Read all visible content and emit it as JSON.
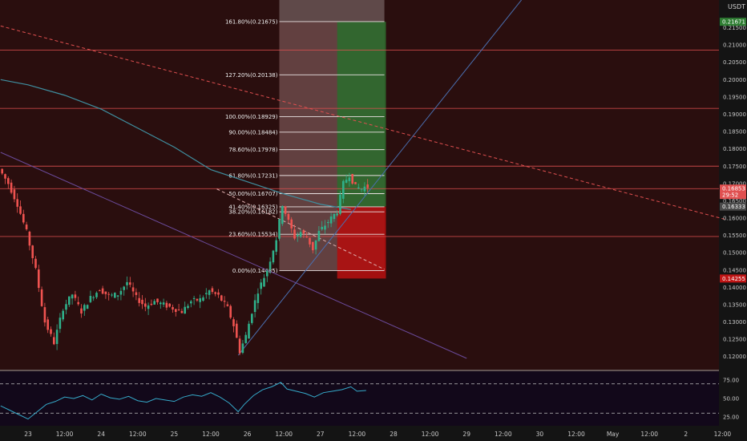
{
  "chart_data": {
    "type": "candlestick",
    "currency": "USDT",
    "price_axis": {
      "min": 0.116,
      "max": 0.223,
      "ticks": [
        "0.21500",
        "0.21000",
        "0.20500",
        "0.20000",
        "0.19500",
        "0.19000",
        "0.18500",
        "0.18000",
        "0.17500",
        "0.17000",
        "0.16500",
        "0.16000",
        "0.15500",
        "0.15000",
        "0.14500",
        "0.14000",
        "0.13500",
        "0.13000",
        "0.12500",
        "0.12000"
      ]
    },
    "price_badges": [
      {
        "value": 0.21671,
        "label": "0.21671",
        "color": "#2e7d32"
      },
      {
        "value": 0.16853,
        "label": "0.16853",
        "sub": "29:52",
        "color": "#e05050"
      },
      {
        "value": 0.16333,
        "label": "0.16333",
        "color": "#4a4a4a"
      },
      {
        "value": 0.14255,
        "label": "0.14255",
        "color": "#c01515"
      }
    ],
    "time_axis": [
      {
        "label": "23",
        "t": 0
      },
      {
        "label": "12:00",
        "t": 12
      },
      {
        "label": "24",
        "t": 24
      },
      {
        "label": "12:00",
        "t": 36
      },
      {
        "label": "25",
        "t": 48
      },
      {
        "label": "12:00",
        "t": 60
      },
      {
        "label": "26",
        "t": 72
      },
      {
        "label": "12:00",
        "t": 84
      },
      {
        "label": "27",
        "t": 96
      },
      {
        "label": "12:00",
        "t": 108
      },
      {
        "label": "28",
        "t": 120
      },
      {
        "label": "12:00",
        "t": 132
      },
      {
        "label": "29",
        "t": 144
      },
      {
        "label": "12:00",
        "t": 156
      },
      {
        "label": "30",
        "t": 168
      },
      {
        "label": "12:00",
        "t": 180
      },
      {
        "label": "May",
        "t": 192
      },
      {
        "label": "12:00",
        "t": 204
      },
      {
        "label": "2",
        "t": 216
      },
      {
        "label": "12:00",
        "t": 228
      }
    ],
    "fib_levels": [
      {
        "label": "161.80%(0.21675)",
        "value": 0.21675
      },
      {
        "label": "127.20%(0.20138)",
        "value": 0.20138
      },
      {
        "label": "100.00%(0.18929)",
        "value": 0.18929
      },
      {
        "label": "90.00%(0.18484)",
        "value": 0.18484
      },
      {
        "label": "78.60%(0.17978)",
        "value": 0.17978
      },
      {
        "label": "61.80%(0.17231)",
        "value": 0.17231
      },
      {
        "label": "50.00%(0.16707)",
        "value": 0.16707
      },
      {
        "label": "41.40%(0.16325)",
        "value": 0.16325
      },
      {
        "label": "38.20%(0.16182)",
        "value": 0.16182
      },
      {
        "label": "23.60%(0.15534)",
        "value": 0.15534
      },
      {
        "label": "0.00%(0.14485)",
        "value": 0.14485
      }
    ],
    "fib_time_range": [
      82.5,
      117
    ],
    "position_tool": {
      "t_start": 101.5,
      "t_end": 117.5,
      "target": 0.21671,
      "entry": 0.16333,
      "stop": 0.14255
    },
    "horizontal_lines": [
      0.2085,
      0.1917,
      0.175,
      0.1685,
      0.1547
    ],
    "trend_lines": [
      {
        "t1": -9,
        "p1": 0.2155,
        "t2": 229,
        "p2": 0.1596,
        "style": "dashed",
        "color": "#e05050"
      },
      {
        "t1": 62,
        "p1": 0.1684,
        "t2": 117,
        "p2": 0.1452,
        "style": "dashed",
        "color": "#e0b0b0"
      },
      {
        "t1": 69,
        "p1": 0.1204,
        "t2": 162,
        "p2": 0.223,
        "style": "solid",
        "color": "#4a6fb0"
      },
      {
        "t1": -9,
        "p1": 0.179,
        "t2": 144,
        "p2": 0.1195,
        "style": "solid",
        "color": "#6a4a9a"
      }
    ],
    "moving_average": [
      {
        "t": -9,
        "p": 0.2
      },
      {
        "t": 0,
        "p": 0.1985
      },
      {
        "t": 12,
        "p": 0.1955
      },
      {
        "t": 24,
        "p": 0.1915
      },
      {
        "t": 36,
        "p": 0.186
      },
      {
        "t": 48,
        "p": 0.1805
      },
      {
        "t": 60,
        "p": 0.174
      },
      {
        "t": 72,
        "p": 0.1705
      },
      {
        "t": 84,
        "p": 0.167
      },
      {
        "t": 96,
        "p": 0.164
      },
      {
        "t": 106,
        "p": 0.1625
      }
    ],
    "candle_path": [
      {
        "t": -9,
        "p": 0.1742
      },
      {
        "t": -6,
        "p": 0.17
      },
      {
        "t": -3,
        "p": 0.164
      },
      {
        "t": 0,
        "p": 0.156
      },
      {
        "t": 3,
        "p": 0.145
      },
      {
        "t": 6,
        "p": 0.13
      },
      {
        "t": 9,
        "p": 0.124
      },
      {
        "t": 12,
        "p": 0.134
      },
      {
        "t": 15,
        "p": 0.138
      },
      {
        "t": 18,
        "p": 0.133
      },
      {
        "t": 21,
        "p": 0.137
      },
      {
        "t": 24,
        "p": 0.1395
      },
      {
        "t": 27,
        "p": 0.1375
      },
      {
        "t": 30,
        "p": 0.138
      },
      {
        "t": 33,
        "p": 0.1415
      },
      {
        "t": 36,
        "p": 0.137
      },
      {
        "t": 39,
        "p": 0.1345
      },
      {
        "t": 42,
        "p": 0.136
      },
      {
        "t": 45,
        "p": 0.135
      },
      {
        "t": 48,
        "p": 0.134
      },
      {
        "t": 51,
        "p": 0.133
      },
      {
        "t": 54,
        "p": 0.136
      },
      {
        "t": 57,
        "p": 0.1365
      },
      {
        "t": 60,
        "p": 0.139
      },
      {
        "t": 63,
        "p": 0.1375
      },
      {
        "t": 66,
        "p": 0.134
      },
      {
        "t": 68,
        "p": 0.129
      },
      {
        "t": 70,
        "p": 0.1215
      },
      {
        "t": 72,
        "p": 0.126
      },
      {
        "t": 74,
        "p": 0.133
      },
      {
        "t": 76,
        "p": 0.139
      },
      {
        "t": 79,
        "p": 0.145
      },
      {
        "t": 82,
        "p": 0.154
      },
      {
        "t": 84,
        "p": 0.164
      },
      {
        "t": 86,
        "p": 0.159
      },
      {
        "t": 88,
        "p": 0.1545
      },
      {
        "t": 90,
        "p": 0.156
      },
      {
        "t": 92,
        "p": 0.1545
      },
      {
        "t": 94,
        "p": 0.151
      },
      {
        "t": 96,
        "p": 0.156
      },
      {
        "t": 98,
        "p": 0.158
      },
      {
        "t": 100,
        "p": 0.16
      },
      {
        "t": 102,
        "p": 0.162
      },
      {
        "t": 104,
        "p": 0.17
      },
      {
        "t": 106,
        "p": 0.1725
      },
      {
        "t": 108,
        "p": 0.169
      },
      {
        "t": 110,
        "p": 0.1685
      },
      {
        "t": 111,
        "p": 0.169
      }
    ],
    "rsi": {
      "min": 15,
      "max": 85,
      "ticks": [
        "75.00",
        "50.00",
        "25.00"
      ],
      "levels": [
        70,
        30
      ],
      "points": [
        {
          "t": -9,
          "v": 40
        },
        {
          "t": -6,
          "v": 34
        },
        {
          "t": -3,
          "v": 28
        },
        {
          "t": 0,
          "v": 22
        },
        {
          "t": 3,
          "v": 32
        },
        {
          "t": 6,
          "v": 42
        },
        {
          "t": 9,
          "v": 46
        },
        {
          "t": 12,
          "v": 52
        },
        {
          "t": 15,
          "v": 50
        },
        {
          "t": 18,
          "v": 54
        },
        {
          "t": 21,
          "v": 48
        },
        {
          "t": 24,
          "v": 56
        },
        {
          "t": 27,
          "v": 51
        },
        {
          "t": 30,
          "v": 49
        },
        {
          "t": 33,
          "v": 53
        },
        {
          "t": 36,
          "v": 47
        },
        {
          "t": 39,
          "v": 45
        },
        {
          "t": 42,
          "v": 50
        },
        {
          "t": 45,
          "v": 48
        },
        {
          "t": 48,
          "v": 46
        },
        {
          "t": 51,
          "v": 52
        },
        {
          "t": 54,
          "v": 55
        },
        {
          "t": 57,
          "v": 53
        },
        {
          "t": 60,
          "v": 58
        },
        {
          "t": 63,
          "v": 52
        },
        {
          "t": 66,
          "v": 44
        },
        {
          "t": 69,
          "v": 32
        },
        {
          "t": 71,
          "v": 42
        },
        {
          "t": 74,
          "v": 54
        },
        {
          "t": 77,
          "v": 62
        },
        {
          "t": 80,
          "v": 66
        },
        {
          "t": 83,
          "v": 72
        },
        {
          "t": 85,
          "v": 63
        },
        {
          "t": 88,
          "v": 60
        },
        {
          "t": 91,
          "v": 57
        },
        {
          "t": 94,
          "v": 52
        },
        {
          "t": 97,
          "v": 58
        },
        {
          "t": 100,
          "v": 60
        },
        {
          "t": 103,
          "v": 62
        },
        {
          "t": 106,
          "v": 66
        },
        {
          "t": 108,
          "v": 60
        },
        {
          "t": 111,
          "v": 61
        }
      ]
    }
  }
}
